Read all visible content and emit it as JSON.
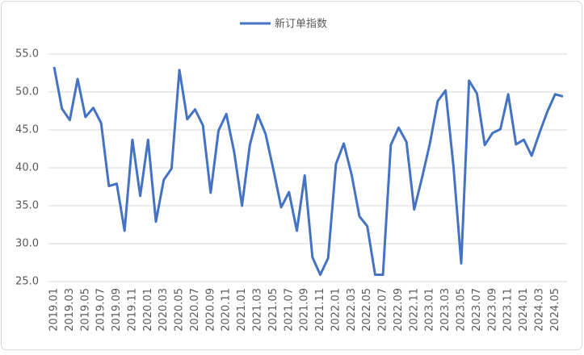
{
  "chart_data": {
    "type": "line",
    "categories": [
      "2019.01",
      null,
      "2019.03",
      null,
      "2019.05",
      null,
      "2019.07",
      null,
      "2019.09",
      null,
      "2019.11",
      null,
      "2020.01",
      null,
      "2020.03",
      null,
      "2020.05",
      null,
      "2020.07",
      null,
      "2020.09",
      null,
      "2020.11",
      null,
      "2021.01",
      null,
      "2021.03",
      null,
      "2021.05",
      null,
      "2021.07",
      null,
      "2021.09",
      null,
      "2021.11",
      null,
      "2022.01",
      null,
      "2022.03",
      null,
      "2022.05",
      null,
      "2022.07",
      null,
      "2022.09",
      null,
      "2022.11",
      null,
      "2023.01",
      null,
      "2023.03",
      null,
      "2023.05",
      null,
      "2023.07",
      null,
      "2023.09",
      null,
      "2023.11",
      null,
      "2024.01",
      null,
      "2024.03",
      null,
      "2024.05",
      null
    ],
    "series": [
      {
        "name": "新订单指数",
        "color": "#4472c4",
        "values": [
          53.3,
          47.8,
          46.3,
          51.7,
          46.7,
          47.9,
          45.9,
          37.6,
          37.9,
          31.7,
          43.7,
          36.3,
          43.7,
          32.9,
          38.4,
          39.9,
          52.9,
          46.4,
          47.7,
          45.6,
          36.7,
          44.9,
          47.1,
          42.1,
          35.0,
          43.0,
          47.0,
          44.5,
          39.8,
          34.8,
          36.8,
          31.7,
          39.0,
          28.2,
          25.9,
          28.1,
          40.5,
          43.2,
          39.1,
          33.6,
          32.3,
          25.9,
          25.9,
          43.0,
          45.3,
          43.4,
          34.5,
          38.7,
          43.2,
          48.8,
          50.2,
          40.3,
          27.4,
          51.5,
          49.8,
          43.0,
          44.6,
          45.1,
          49.7,
          43.1,
          43.7,
          41.6,
          44.6,
          47.4,
          49.7,
          49.4
        ]
      }
    ],
    "ylim": [
      25,
      55
    ],
    "yticks": [
      {
        "value": 25,
        "label": "25.0"
      },
      {
        "value": 30,
        "label": "30.0"
      },
      {
        "value": 35,
        "label": "35.0"
      },
      {
        "value": 40,
        "label": "40.0"
      },
      {
        "value": 45,
        "label": "45.0"
      },
      {
        "value": 50,
        "label": "50.0"
      },
      {
        "value": 55,
        "label": "55.0"
      }
    ],
    "grid": true,
    "legend": "top"
  }
}
